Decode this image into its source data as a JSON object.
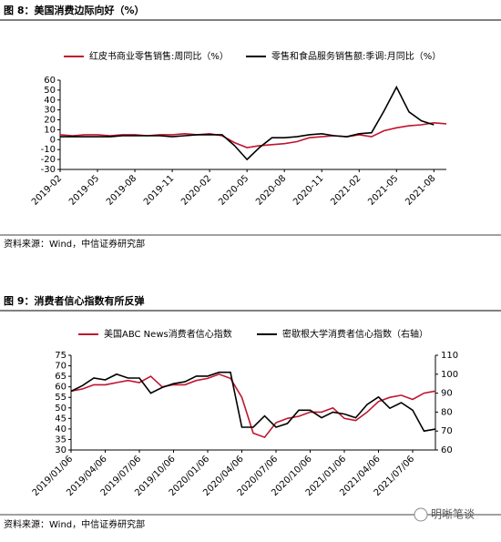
{
  "chart_data": [
    {
      "type": "line",
      "title": "图 8：美国消费边际向好（%）",
      "source": "资料来源：Wind，中信证券研究部",
      "categories": [
        "2019-02",
        null,
        null,
        "2019-05",
        null,
        null,
        "2019-08",
        null,
        null,
        "2019-11",
        null,
        null,
        "2020-02",
        null,
        null,
        "2020-05",
        null,
        null,
        "2020-08",
        null,
        null,
        "2020-11",
        null,
        null,
        "2021-02",
        null,
        null,
        "2021-05",
        null,
        null,
        "2021-08",
        null
      ],
      "series": [
        {
          "name": "红皮书商业零售销售:周同比（%）",
          "color": "#c0152f",
          "values": [
            5,
            4,
            5,
            5,
            4,
            5,
            5,
            4,
            5,
            5,
            6,
            5,
            6,
            4,
            -3,
            -8,
            -6,
            -5,
            -4,
            -2,
            2,
            3,
            4,
            3,
            5,
            3,
            9,
            12,
            14,
            15,
            17,
            16
          ]
        },
        {
          "name": "零售和食品服务销售额:季调:月同比（%）",
          "color": "#000000",
          "values": [
            3,
            3,
            3,
            3,
            3,
            4,
            4,
            4,
            4,
            3,
            4,
            5,
            5,
            5,
            -6,
            -20,
            -8,
            2,
            2,
            3,
            5,
            6,
            4,
            3,
            6,
            7,
            29,
            53,
            28,
            19,
            15,
            null
          ]
        }
      ],
      "ylim": [
        -30,
        60
      ],
      "yticks": [
        -30,
        -20,
        -10,
        0,
        10,
        20,
        30,
        40,
        50,
        60
      ],
      "grid": false
    },
    {
      "type": "line",
      "title": "图 9：消费者信心指数有所反弹",
      "source": "资料来源：Wind，中信证券研究部",
      "categories": [
        "2019/01/06",
        null,
        null,
        "2019/04/06",
        null,
        null,
        "2019/07/06",
        null,
        null,
        "2019/10/06",
        null,
        null,
        "2020/01/06",
        null,
        null,
        "2020/04/06",
        null,
        null,
        "2020/07/06",
        null,
        null,
        "2020/10/06",
        null,
        null,
        "2021/01/06",
        null,
        null,
        "2021/04/06",
        null,
        null,
        "2021/07/06",
        null,
        null
      ],
      "series": [
        {
          "name": "美国ABC News消费者信心指数",
          "color": "#c0152f",
          "values": [
            58,
            59,
            61,
            61,
            62,
            63,
            62,
            65,
            60,
            61,
            61,
            63,
            64,
            66,
            64,
            55,
            38,
            36,
            43,
            45,
            46,
            48,
            48,
            50,
            45,
            44,
            48,
            53,
            55,
            56,
            54,
            57,
            58
          ]
        },
        {
          "name": "密歇根大学消费者信心指数（右轴）",
          "color": "#000000",
          "axis": "y2",
          "values": [
            91,
            94,
            98,
            97,
            100,
            98,
            98,
            90,
            93,
            95,
            96,
            99,
            99,
            101,
            101,
            72,
            72,
            78,
            72,
            74,
            81,
            81,
            77,
            80,
            79,
            77,
            84,
            88,
            82,
            85,
            81,
            70,
            71
          ]
        }
      ],
      "ylim": [
        30,
        75
      ],
      "yticks": [
        30,
        35,
        40,
        45,
        50,
        55,
        60,
        65,
        70,
        75
      ],
      "y2lim": [
        60,
        110
      ],
      "y2ticks": [
        60,
        70,
        80,
        90,
        100,
        110
      ],
      "grid": false
    }
  ],
  "watermark": "明晰笔谈"
}
